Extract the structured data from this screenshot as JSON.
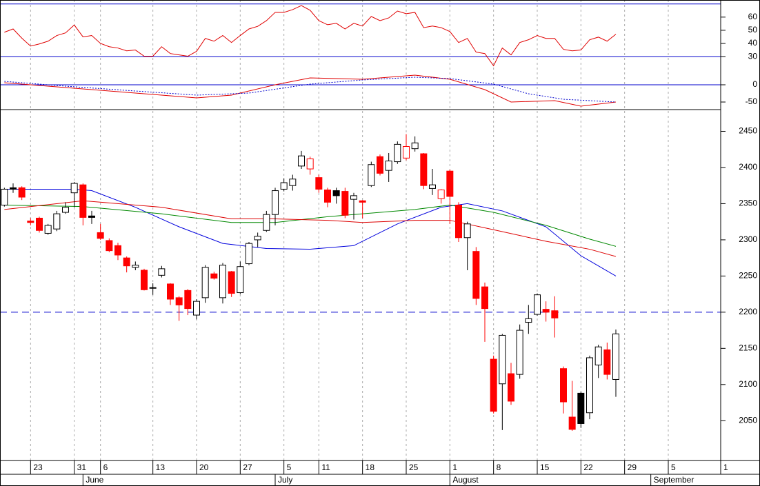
{
  "chart_data": [
    {
      "type": "line",
      "series": [
        {
          "color": "#e00000",
          "values": [
            48.5,
            51,
            44,
            38,
            39.6,
            41.7,
            46,
            48,
            54,
            45,
            46,
            40,
            37.5,
            36.5,
            34.4,
            35,
            30.3,
            30.3,
            37.5,
            32.3,
            31.3,
            30.3,
            34,
            43.8,
            41.7,
            46,
            40.7,
            46,
            51,
            53,
            57.3,
            63.6,
            63.6,
            65.7,
            68.8,
            65.2,
            57.3,
            54.2,
            55.3,
            51,
            55.3,
            53.2,
            60.5,
            57.3,
            59.4,
            64.6,
            62.6,
            63.6,
            52,
            53.2,
            52,
            49,
            40.7,
            43.8,
            33.4,
            32.3,
            23,
            36.5,
            31.3,
            40.7,
            42.8,
            46,
            43.8,
            43.8,
            35.5,
            34.4,
            35,
            42.8,
            44.8,
            41.7,
            47
          ]
        }
      ],
      "ylim": [
        18,
        73
      ],
      "yticks": [
        30,
        40,
        50,
        60
      ],
      "reference_lines": [
        70,
        30
      ],
      "reference_color": "#0000cc"
    },
    {
      "type": "line",
      "series": [
        {
          "color": "#e00000",
          "x": [
            0,
            7,
            15,
            22,
            26,
            31,
            35,
            41,
            47,
            51,
            55,
            58,
            63,
            66,
            70
          ],
          "values": [
            6,
            -8,
            -24,
            -38,
            -30,
            0,
            20,
            16,
            28,
            16,
            -14,
            -50,
            -46,
            -62,
            -50
          ]
        },
        {
          "color": "#0000cc",
          "dashed": true,
          "x": [
            0,
            7,
            15,
            22,
            28,
            35,
            41,
            47,
            51,
            56,
            60,
            64,
            70
          ],
          "values": [
            10,
            -4,
            -18,
            -30,
            -24,
            2,
            14,
            22,
            18,
            2,
            -26,
            -42,
            -50
          ]
        }
      ],
      "ylim": [
        -72,
        36
      ],
      "yticks": [
        0,
        -50
      ],
      "reference_lines": [
        0
      ],
      "reference_color": "#0000cc"
    },
    {
      "type": "candlestick",
      "open": [
        2348,
        2372,
        2372,
        2326,
        2330,
        2309,
        2315,
        2338,
        2365,
        2376,
        2333,
        2310,
        2299,
        2292,
        2275,
        2262,
        2258,
        2234,
        2251,
        2239,
        2220,
        2230,
        2196,
        2220,
        2253,
        2220,
        2256,
        2227,
        2267,
        2300,
        2313,
        2335,
        2370,
        2375,
        2402,
        2398,
        2386,
        2369,
        2368,
        2367,
        2356,
        2354,
        2375,
        2415,
        2396,
        2408,
        2413,
        2426,
        2419,
        2371,
        2357,
        2395,
        2348,
        2303,
        2284,
        2235,
        2135,
        2101,
        2115,
        2114,
        2186,
        2197,
        2204,
        2202,
        2122,
        2055,
        2088,
        2061,
        2127,
        2148,
        2107
      ],
      "high": [
        2372,
        2378,
        2374,
        2330,
        2332,
        2322,
        2340,
        2352,
        2380,
        2378,
        2340,
        2322,
        2302,
        2296,
        2277,
        2270,
        2260,
        2240,
        2264,
        2240,
        2222,
        2232,
        2218,
        2265,
        2256,
        2268,
        2257,
        2270,
        2297,
        2310,
        2340,
        2372,
        2385,
        2390,
        2423,
        2415,
        2390,
        2372,
        2372,
        2372,
        2365,
        2355,
        2408,
        2418,
        2420,
        2436,
        2446,
        2443,
        2420,
        2398,
        2370,
        2397,
        2352,
        2325,
        2290,
        2241,
        2140,
        2170,
        2130,
        2183,
        2210,
        2226,
        2215,
        2222,
        2125,
        2105,
        2090,
        2140,
        2155,
        2158,
        2176
      ],
      "low": [
        2346,
        2365,
        2355,
        2320,
        2310,
        2307,
        2312,
        2336,
        2345,
        2320,
        2322,
        2300,
        2283,
        2272,
        2255,
        2258,
        2230,
        2224,
        2248,
        2210,
        2188,
        2196,
        2190,
        2213,
        2245,
        2212,
        2221,
        2225,
        2265,
        2290,
        2311,
        2320,
        2367,
        2368,
        2398,
        2390,
        2365,
        2345,
        2350,
        2330,
        2328,
        2330,
        2373,
        2389,
        2380,
        2405,
        2410,
        2422,
        2370,
        2362,
        2350,
        2322,
        2297,
        2258,
        2210,
        2159,
        2060,
        2037,
        2072,
        2108,
        2170,
        2195,
        2187,
        2165,
        2060,
        2036,
        2040,
        2052,
        2109,
        2107,
        2083
      ],
      "close": [
        2370,
        2370,
        2359,
        2324,
        2313,
        2320,
        2336,
        2345,
        2378,
        2331,
        2331,
        2302,
        2285,
        2279,
        2264,
        2265,
        2231,
        2233,
        2260,
        2218,
        2210,
        2205,
        2215,
        2262,
        2247,
        2265,
        2226,
        2263,
        2295,
        2305,
        2335,
        2368,
        2379,
        2384,
        2416,
        2412,
        2370,
        2352,
        2361,
        2334,
        2361,
        2352,
        2404,
        2392,
        2409,
        2432,
        2429,
        2434,
        2375,
        2376,
        2369,
        2360,
        2303,
        2322,
        2219,
        2205,
        2063,
        2168,
        2077,
        2175,
        2191,
        2224,
        2200,
        2192,
        2076,
        2038,
        2046,
        2137,
        2152,
        2114,
        2170
      ],
      "colors": {
        "rise": "#000000",
        "fall": "#ff0000",
        "up_fill": "#ffffff"
      },
      "series": [
        {
          "color": "#0000dd",
          "x": [
            0,
            8,
            10,
            15,
            20,
            25,
            30,
            35,
            40,
            45,
            50,
            53,
            57,
            62,
            66,
            70
          ],
          "values": [
            2370,
            2370,
            2368,
            2345,
            2318,
            2295,
            2288,
            2287,
            2292,
            2322,
            2345,
            2350,
            2340,
            2318,
            2278,
            2250
          ]
        },
        {
          "color": "#008800",
          "x": [
            0,
            9,
            18,
            26,
            31,
            37,
            47,
            51,
            56,
            62,
            67,
            70
          ],
          "values": [
            2348,
            2346,
            2336,
            2324,
            2324,
            2332,
            2342,
            2348,
            2338,
            2320,
            2301,
            2291
          ]
        },
        {
          "color": "#dd0000",
          "x": [
            0,
            9,
            18,
            26,
            31,
            37,
            41,
            47,
            51,
            56,
            62,
            67,
            70
          ],
          "values": [
            2342,
            2354,
            2345,
            2329,
            2329,
            2327,
            2324,
            2327,
            2327,
            2314,
            2298,
            2287,
            2277
          ]
        }
      ],
      "ylim": [
        1995,
        2480
      ],
      "yticks": [
        2050,
        2100,
        2150,
        2200,
        2250,
        2300,
        2350,
        2400,
        2450
      ],
      "reference_lines": [
        2200
      ],
      "reference_color": "#0000cc",
      "reference_dashed": true,
      "xlim": [
        -0.5,
        82
      ],
      "xticks": [
        {
          "value": 3,
          "label": "23"
        },
        {
          "value": 8,
          "label": "31"
        },
        {
          "value": 11,
          "label": "6"
        },
        {
          "value": 17,
          "label": "13"
        },
        {
          "value": 22,
          "label": "20"
        },
        {
          "value": 27,
          "label": "27"
        },
        {
          "value": 32,
          "label": "5"
        },
        {
          "value": 36,
          "label": "11"
        },
        {
          "value": 41,
          "label": "18"
        },
        {
          "value": 46,
          "label": "25"
        },
        {
          "value": 51,
          "label": "1"
        },
        {
          "value": 56,
          "label": "8"
        },
        {
          "value": 61,
          "label": "15"
        },
        {
          "value": 66,
          "label": "22"
        },
        {
          "value": 71,
          "label": "29"
        },
        {
          "value": 76,
          "label": "5"
        },
        {
          "value": 82,
          "label": "1"
        }
      ],
      "month_ticks": [
        {
          "value": 9,
          "label": "June"
        },
        {
          "value": 31,
          "label": "July"
        },
        {
          "value": 51,
          "label": "August"
        },
        {
          "value": 74,
          "label": "September"
        }
      ]
    }
  ]
}
